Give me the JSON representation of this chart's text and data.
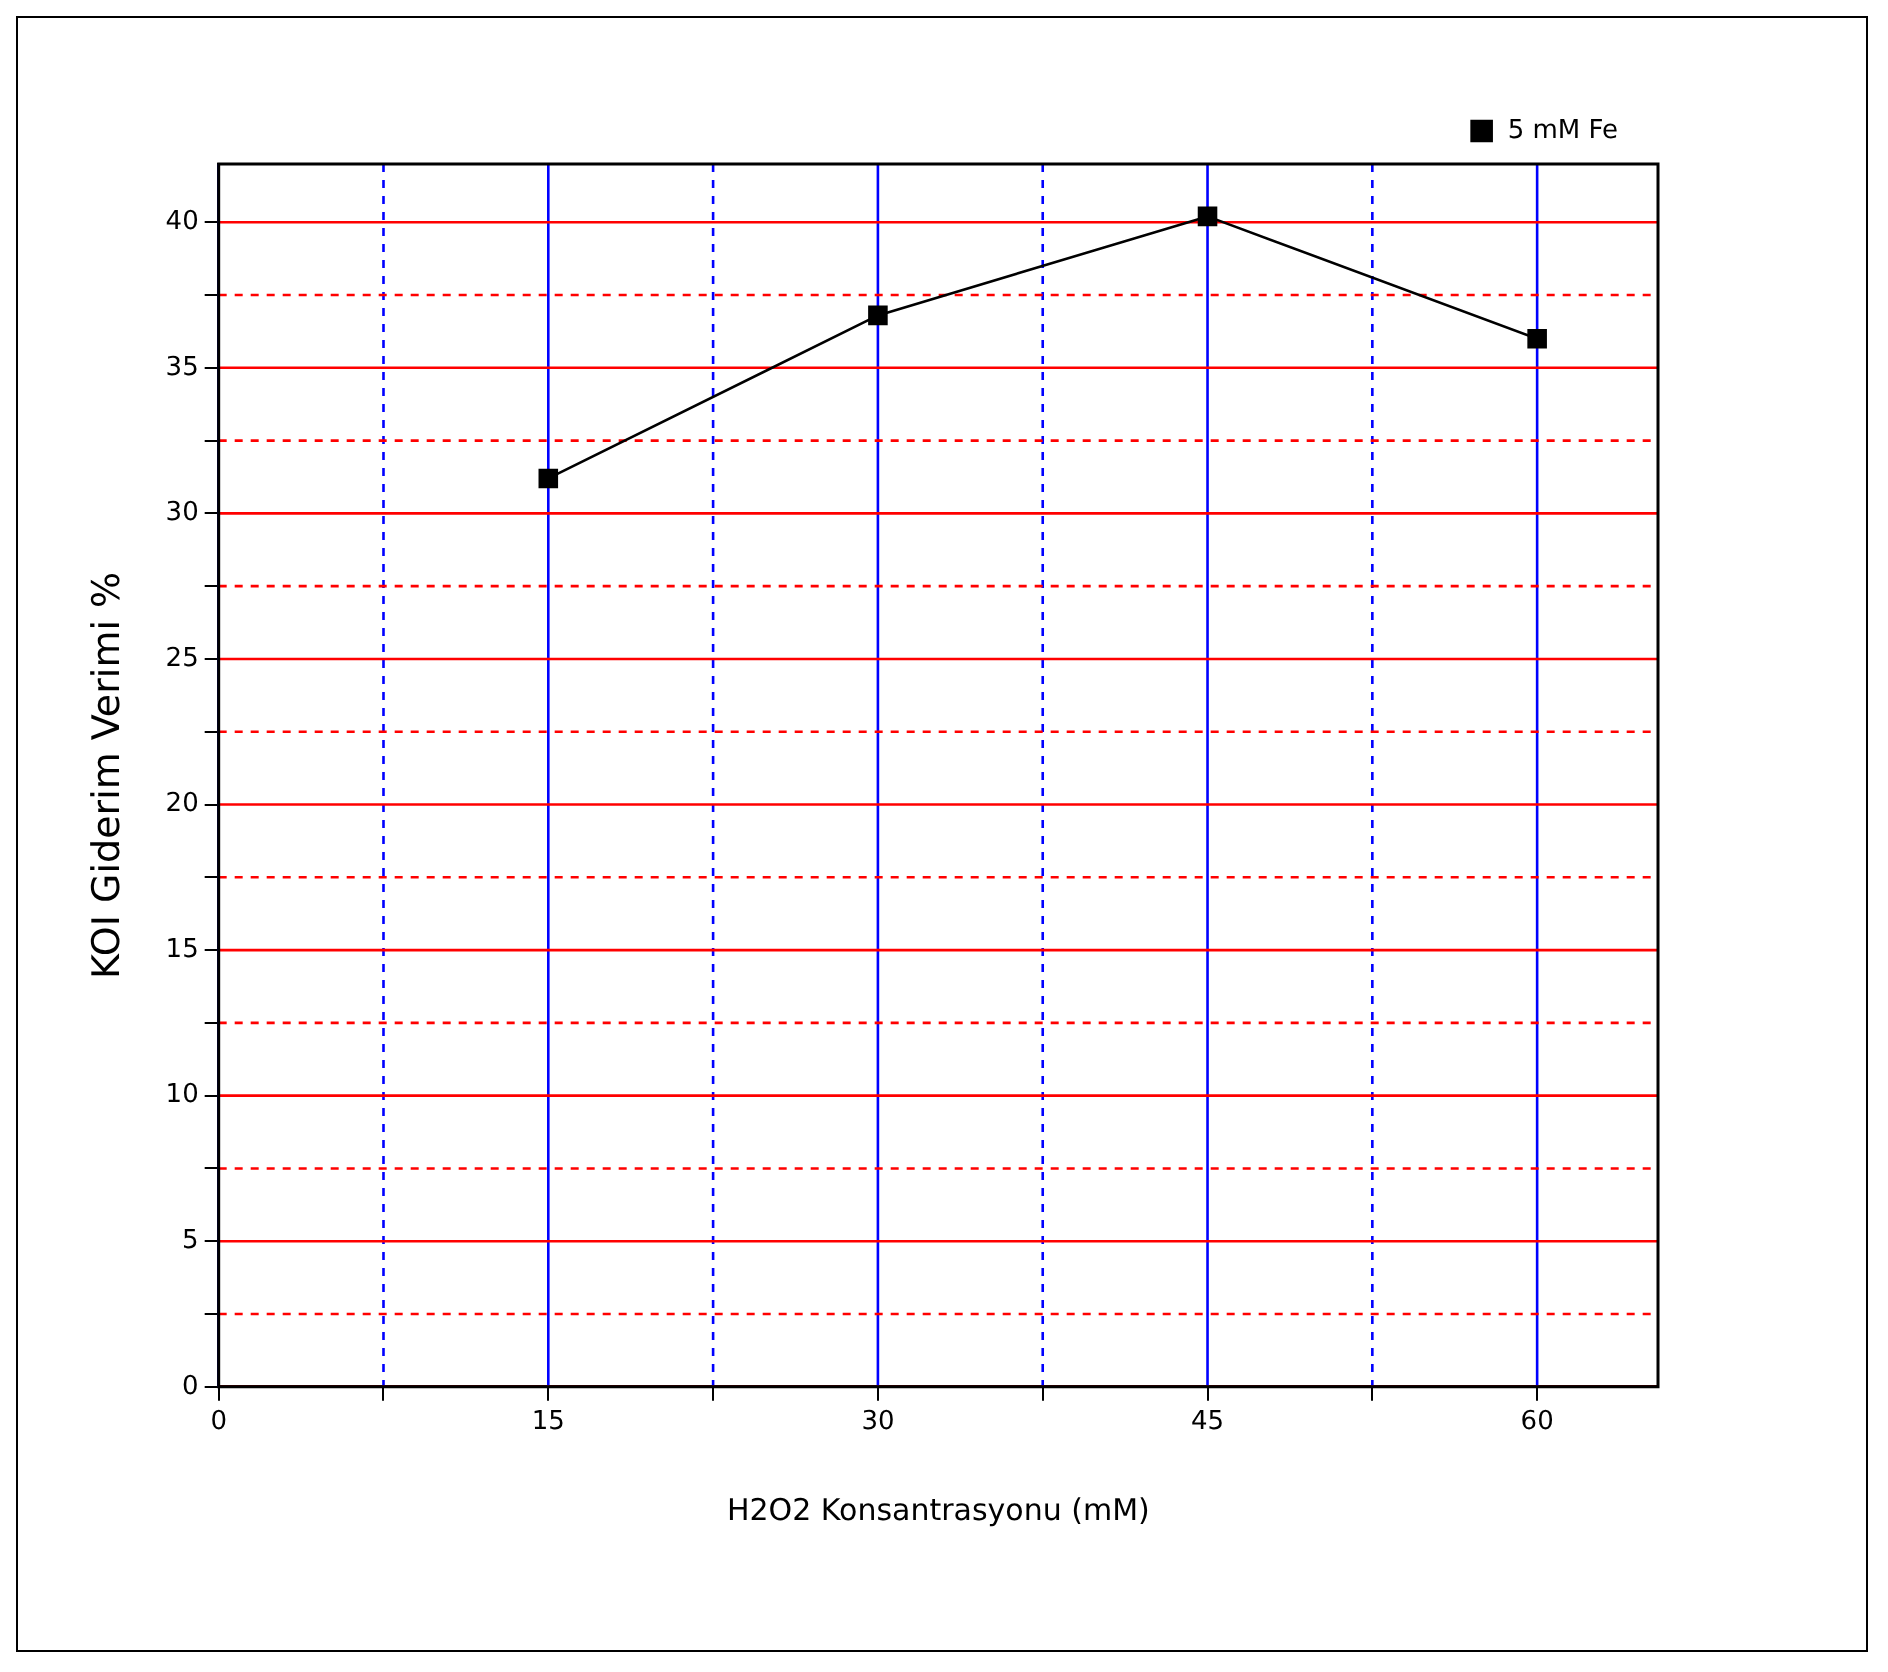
{
  "chart_data": {
    "type": "line",
    "xlabel": "H2O2 Konsantrasyonu (mM)",
    "ylabel": "KOI Giderim Verimi %",
    "x": [
      15,
      30,
      45,
      60
    ],
    "series": [
      {
        "name": "5 mM Fe",
        "color": "#000000",
        "values": [
          31.2,
          36.8,
          40.2,
          36.0
        ]
      }
    ],
    "xlim": [
      0,
      65.5
    ],
    "ylim": [
      0,
      42
    ],
    "xticks": [
      0,
      {
        "value": 7.5,
        "label": null
      },
      15,
      {
        "value": 22.5,
        "label": null
      },
      30,
      {
        "value": 37.5,
        "label": null
      },
      45,
      {
        "value": 52.5,
        "label": null
      },
      60
    ],
    "yticks": [
      0,
      {
        "value": 2.5,
        "label": null
      },
      5,
      {
        "value": 7.5,
        "label": null
      },
      10,
      {
        "value": 12.5,
        "label": null
      },
      15,
      {
        "value": 17.5,
        "label": null
      },
      20,
      {
        "value": 22.5,
        "label": null
      },
      25,
      {
        "value": 27.5,
        "label": null
      },
      30,
      {
        "value": 32.5,
        "label": null
      },
      35,
      {
        "value": 37.5,
        "label": null
      },
      40
    ],
    "grid": true,
    "legend": "top right",
    "marker": "square",
    "line_style": "solid"
  }
}
